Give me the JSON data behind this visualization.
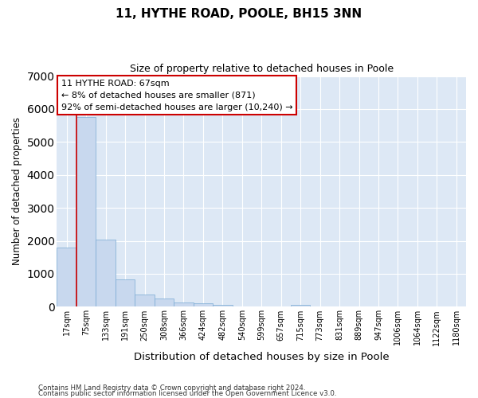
{
  "title": "11, HYTHE ROAD, POOLE, BH15 3NN",
  "subtitle": "Size of property relative to detached houses in Poole",
  "xlabel": "Distribution of detached houses by size in Poole",
  "ylabel": "Number of detached properties",
  "bar_color": "#c8d8ee",
  "bar_edge_color": "#7aaad4",
  "bg_color": "#dde8f5",
  "grid_color": "#ffffff",
  "annotation_box_color": "#ffffff",
  "annotation_border_color": "#cc0000",
  "red_line_color": "#cc0000",
  "fig_bg_color": "#ffffff",
  "categories": [
    "17sqm",
    "75sqm",
    "133sqm",
    "191sqm",
    "250sqm",
    "308sqm",
    "366sqm",
    "424sqm",
    "482sqm",
    "540sqm",
    "599sqm",
    "657sqm",
    "715sqm",
    "773sqm",
    "831sqm",
    "889sqm",
    "947sqm",
    "1006sqm",
    "1064sqm",
    "1122sqm",
    "1180sqm"
  ],
  "values": [
    1800,
    5750,
    2050,
    830,
    370,
    240,
    130,
    100,
    50,
    20,
    15,
    10,
    50,
    0,
    0,
    0,
    0,
    0,
    0,
    0,
    0
  ],
  "annotation_title": "11 HYTHE ROAD: 67sqm",
  "annotation_line1": "← 8% of detached houses are smaller (871)",
  "annotation_line2": "92% of semi-detached houses are larger (10,240) →",
  "footnote1": "Contains HM Land Registry data © Crown copyright and database right 2024.",
  "footnote2": "Contains public sector information licensed under the Open Government Licence v3.0.",
  "ylim": [
    0,
    7000
  ],
  "red_line_x": 0.52
}
